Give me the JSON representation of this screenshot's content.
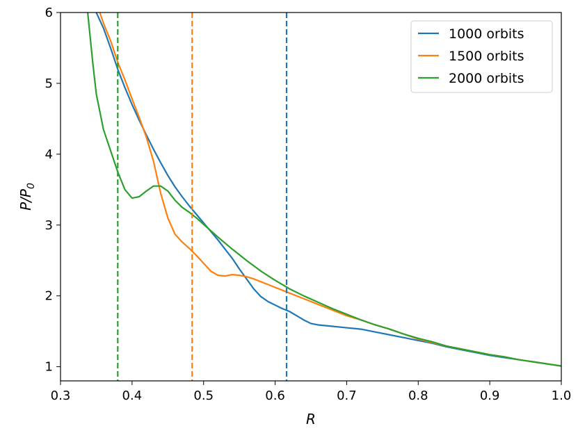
{
  "chart_data": {
    "type": "line",
    "xlabel_main": "R",
    "ylabel_main": "P/P",
    "ylabel_sub": "0",
    "xlim": [
      0.3,
      1.0
    ],
    "ylim": [
      0.8,
      6.0
    ],
    "x_ticks": [
      0.3,
      0.4,
      0.5,
      0.6,
      0.7,
      0.8,
      0.9,
      1.0
    ],
    "x_tick_labels": [
      "0.3",
      "0.4",
      "0.5",
      "0.6",
      "0.7",
      "0.8",
      "0.9",
      "1.0"
    ],
    "y_ticks": [
      1,
      2,
      3,
      4,
      5,
      6
    ],
    "y_tick_labels": [
      "1",
      "2",
      "3",
      "4",
      "5",
      "6"
    ],
    "grid": false,
    "legend_position": "top-right",
    "series": [
      {
        "name": "1000 orbits",
        "color": "#1f77b4",
        "vline_x": 0.616,
        "points": [
          [
            0.35,
            6.0
          ],
          [
            0.36,
            5.78
          ],
          [
            0.37,
            5.5
          ],
          [
            0.38,
            5.2
          ],
          [
            0.39,
            4.94
          ],
          [
            0.4,
            4.7
          ],
          [
            0.41,
            4.48
          ],
          [
            0.42,
            4.27
          ],
          [
            0.43,
            4.07
          ],
          [
            0.44,
            3.88
          ],
          [
            0.45,
            3.7
          ],
          [
            0.46,
            3.54
          ],
          [
            0.47,
            3.4
          ],
          [
            0.48,
            3.27
          ],
          [
            0.49,
            3.15
          ],
          [
            0.5,
            3.03
          ],
          [
            0.51,
            2.91
          ],
          [
            0.52,
            2.79
          ],
          [
            0.53,
            2.66
          ],
          [
            0.54,
            2.53
          ],
          [
            0.55,
            2.38
          ],
          [
            0.56,
            2.24
          ],
          [
            0.57,
            2.1
          ],
          [
            0.58,
            1.99
          ],
          [
            0.59,
            1.92
          ],
          [
            0.6,
            1.87
          ],
          [
            0.61,
            1.82
          ],
          [
            0.62,
            1.78
          ],
          [
            0.63,
            1.72
          ],
          [
            0.64,
            1.66
          ],
          [
            0.65,
            1.61
          ],
          [
            0.66,
            1.59
          ],
          [
            0.68,
            1.57
          ],
          [
            0.7,
            1.55
          ],
          [
            0.72,
            1.53
          ],
          [
            0.74,
            1.49
          ],
          [
            0.76,
            1.45
          ],
          [
            0.78,
            1.41
          ],
          [
            0.8,
            1.37
          ],
          [
            0.82,
            1.33
          ],
          [
            0.84,
            1.28
          ],
          [
            0.86,
            1.24
          ],
          [
            0.88,
            1.2
          ],
          [
            0.9,
            1.16
          ],
          [
            0.92,
            1.13
          ],
          [
            0.94,
            1.1
          ],
          [
            0.96,
            1.07
          ],
          [
            0.98,
            1.04
          ],
          [
            1.0,
            1.01
          ]
        ]
      },
      {
        "name": "1500 orbits",
        "color": "#ff7f0e",
        "vline_x": 0.484,
        "points": [
          [
            0.355,
            6.0
          ],
          [
            0.36,
            5.85
          ],
          [
            0.37,
            5.6
          ],
          [
            0.38,
            5.3
          ],
          [
            0.39,
            5.05
          ],
          [
            0.4,
            4.78
          ],
          [
            0.41,
            4.52
          ],
          [
            0.42,
            4.24
          ],
          [
            0.43,
            3.9
          ],
          [
            0.44,
            3.45
          ],
          [
            0.45,
            3.1
          ],
          [
            0.46,
            2.87
          ],
          [
            0.47,
            2.76
          ],
          [
            0.48,
            2.67
          ],
          [
            0.49,
            2.57
          ],
          [
            0.5,
            2.46
          ],
          [
            0.51,
            2.35
          ],
          [
            0.52,
            2.29
          ],
          [
            0.53,
            2.28
          ],
          [
            0.54,
            2.3
          ],
          [
            0.55,
            2.29
          ],
          [
            0.56,
            2.27
          ],
          [
            0.57,
            2.24
          ],
          [
            0.58,
            2.2
          ],
          [
            0.59,
            2.16
          ],
          [
            0.6,
            2.12
          ],
          [
            0.62,
            2.04
          ],
          [
            0.64,
            1.96
          ],
          [
            0.66,
            1.88
          ],
          [
            0.68,
            1.8
          ],
          [
            0.7,
            1.72
          ],
          [
            0.72,
            1.66
          ],
          [
            0.74,
            1.59
          ],
          [
            0.76,
            1.53
          ],
          [
            0.78,
            1.46
          ],
          [
            0.8,
            1.39
          ],
          [
            0.82,
            1.34
          ],
          [
            0.84,
            1.29
          ],
          [
            0.86,
            1.25
          ],
          [
            0.88,
            1.21
          ],
          [
            0.9,
            1.17
          ],
          [
            0.92,
            1.14
          ],
          [
            0.94,
            1.1
          ],
          [
            0.96,
            1.07
          ],
          [
            0.98,
            1.04
          ],
          [
            1.0,
            1.01
          ]
        ]
      },
      {
        "name": "2000 orbits",
        "color": "#2ca02c",
        "vline_x": 0.38,
        "points": [
          [
            0.338,
            6.0
          ],
          [
            0.345,
            5.3
          ],
          [
            0.35,
            4.85
          ],
          [
            0.36,
            4.35
          ],
          [
            0.37,
            4.05
          ],
          [
            0.38,
            3.75
          ],
          [
            0.39,
            3.5
          ],
          [
            0.4,
            3.38
          ],
          [
            0.41,
            3.4
          ],
          [
            0.42,
            3.48
          ],
          [
            0.43,
            3.55
          ],
          [
            0.44,
            3.55
          ],
          [
            0.45,
            3.48
          ],
          [
            0.46,
            3.35
          ],
          [
            0.47,
            3.25
          ],
          [
            0.48,
            3.18
          ],
          [
            0.49,
            3.1
          ],
          [
            0.5,
            3.01
          ],
          [
            0.52,
            2.83
          ],
          [
            0.54,
            2.66
          ],
          [
            0.56,
            2.5
          ],
          [
            0.58,
            2.35
          ],
          [
            0.6,
            2.22
          ],
          [
            0.62,
            2.1
          ],
          [
            0.64,
            2.0
          ],
          [
            0.66,
            1.91
          ],
          [
            0.68,
            1.82
          ],
          [
            0.7,
            1.74
          ],
          [
            0.72,
            1.66
          ],
          [
            0.74,
            1.59
          ],
          [
            0.76,
            1.53
          ],
          [
            0.78,
            1.46
          ],
          [
            0.8,
            1.4
          ],
          [
            0.82,
            1.35
          ],
          [
            0.84,
            1.29
          ],
          [
            0.86,
            1.25
          ],
          [
            0.88,
            1.21
          ],
          [
            0.9,
            1.17
          ],
          [
            0.92,
            1.14
          ],
          [
            0.94,
            1.1
          ],
          [
            0.96,
            1.07
          ],
          [
            0.98,
            1.04
          ],
          [
            1.0,
            1.01
          ]
        ]
      }
    ]
  }
}
